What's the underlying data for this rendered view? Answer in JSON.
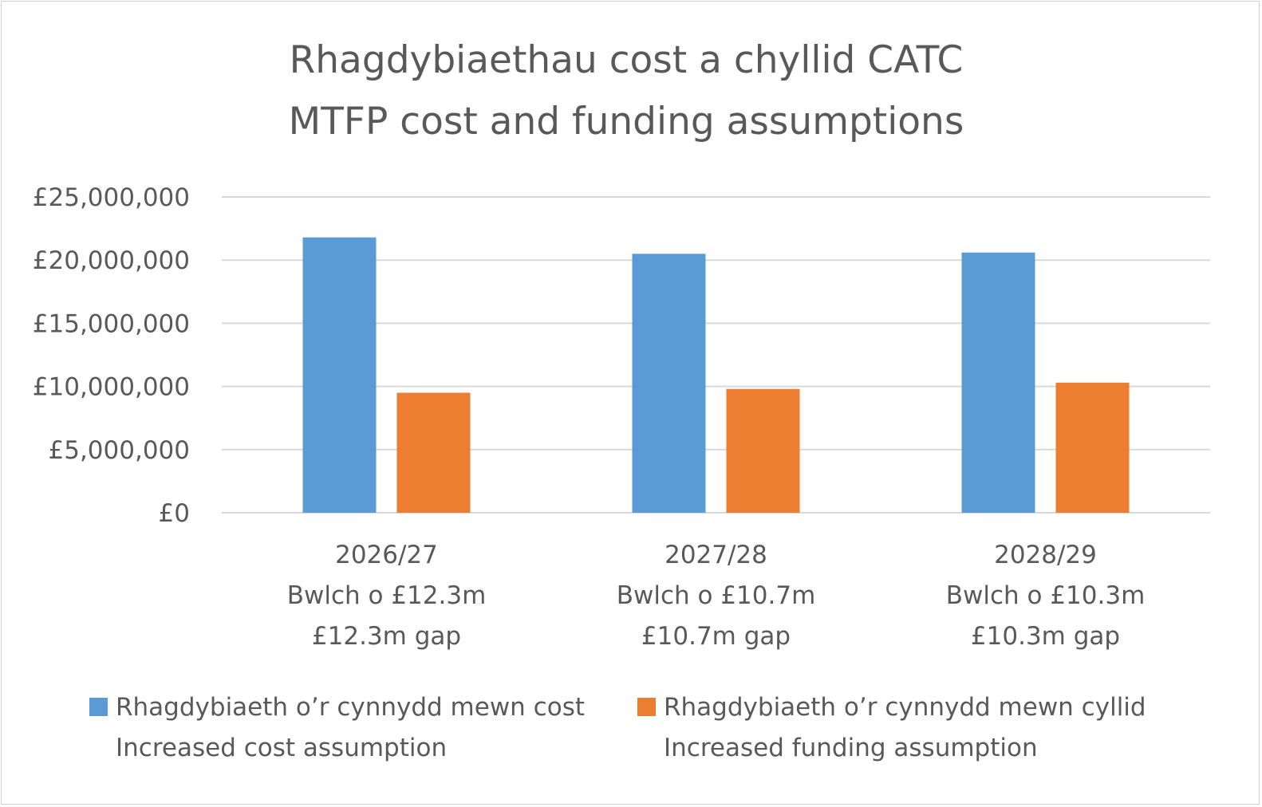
{
  "chart_data": {
    "type": "bar",
    "title": [
      "Rhagdybiaethau cost a chyllid CATC",
      "MTFP cost and funding assumptions"
    ],
    "categories": [
      [
        "2026/27",
        "Bwlch o £12.3m",
        "£12.3m gap"
      ],
      [
        "2027/28",
        "Bwlch o £10.7m",
        "£10.7m gap"
      ],
      [
        "2028/29",
        "Bwlch o £10.3m",
        "£10.3m gap"
      ]
    ],
    "series": [
      {
        "name": [
          "Rhagdybiaeth o’r cynnydd mewn cost",
          "Increased cost assumption"
        ],
        "color": "#5B9BD5",
        "values": [
          21800000,
          20500000,
          20600000
        ]
      },
      {
        "name": [
          "Rhagdybiaeth o’r cynnydd mewn cyllid",
          "Increased funding assumption"
        ],
        "color": "#ED7D31",
        "values": [
          9500000,
          9800000,
          10300000
        ]
      }
    ],
    "yticks": [
      "£0",
      "£5,000,000",
      "£10,000,000",
      "£15,000,000",
      "£20,000,000",
      "£25,000,000"
    ],
    "ylim": [
      0,
      25000000
    ],
    "grid": true,
    "legend_position": "bottom"
  }
}
